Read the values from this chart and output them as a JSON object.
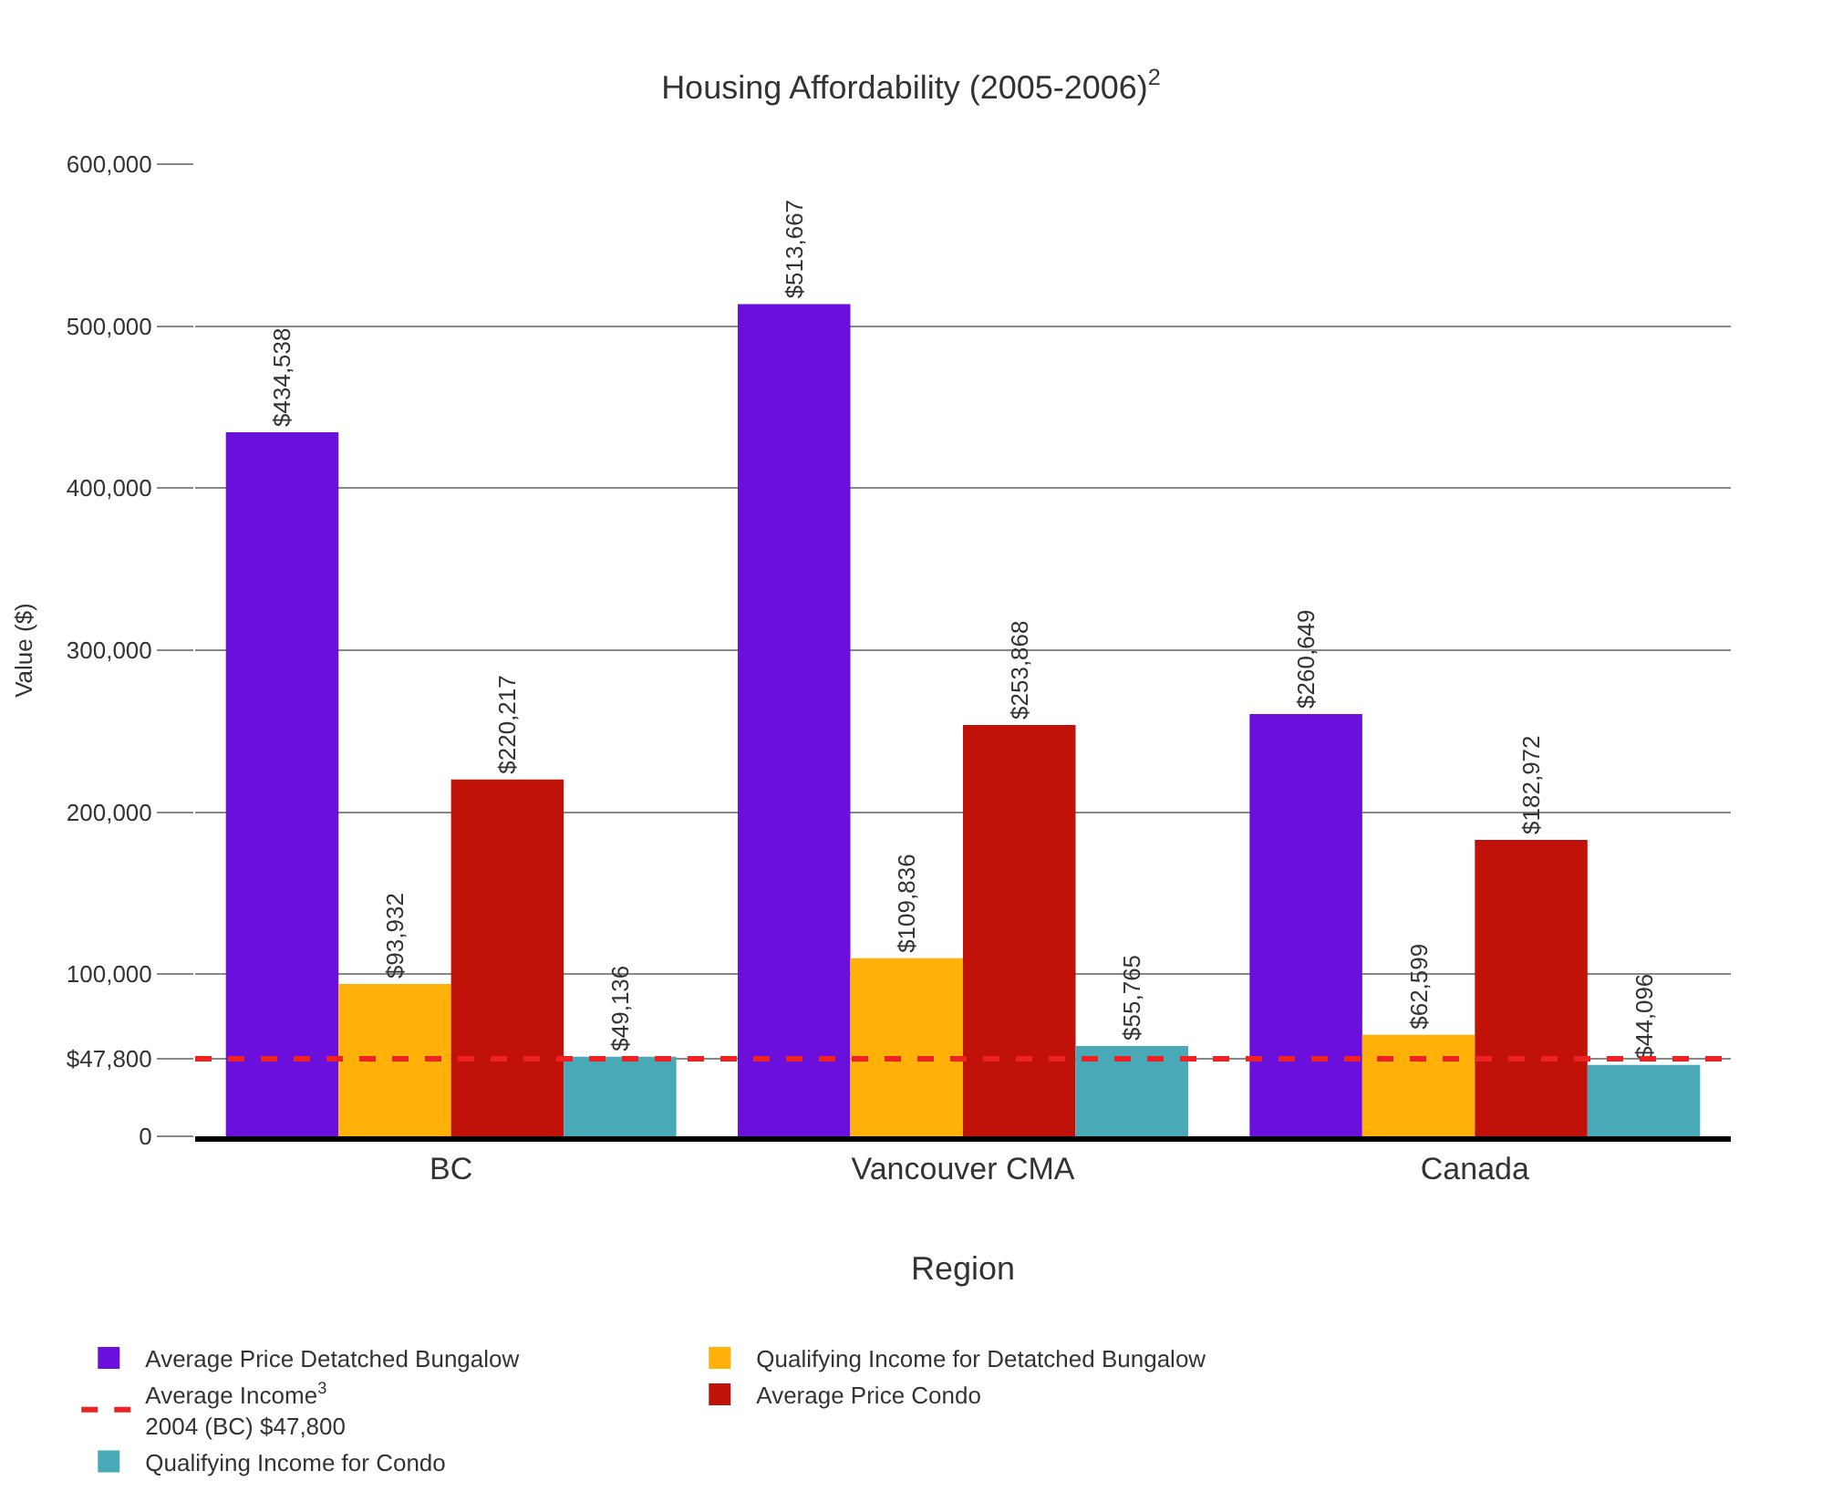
{
  "chart_data": {
    "type": "bar",
    "title": "Housing Affordability (2005-2006)$^{2}$",
    "xlabel": "Region",
    "ylabel": "Value ($)",
    "categories": [
      "BC",
      "Vancouver CMA",
      "Canada"
    ],
    "series": [
      {
        "name": "Average Price Detatched Bungalow",
        "color": "#6a0fdc",
        "values": [
          434538,
          513667,
          260649
        ],
        "value_labels": [
          "$434,538",
          "$513,667",
          "$260,649"
        ]
      },
      {
        "name": "Qualifying Income for Detatched Bungalow",
        "color": "#ffb10a",
        "values": [
          93932,
          109836,
          62599
        ],
        "value_labels": [
          "$93,932",
          "$109,836",
          "$62,599"
        ]
      },
      {
        "name": "Average Price Condo",
        "color": "#c01208",
        "values": [
          220217,
          253868,
          182972
        ],
        "value_labels": [
          "$220,217",
          "$253,868",
          "$182,972"
        ]
      },
      {
        "name": "Qualifying Income for Condo",
        "color": "#4aa9b7",
        "values": [
          49136,
          55765,
          44096
        ],
        "value_labels": [
          "$49,136",
          "$55,765",
          "$44,096"
        ]
      }
    ],
    "ref_lines": [
      {
        "axis": "y",
        "value": 47800,
        "label": "Average Income$^{3}$\n2004 (BC) $47,800",
        "color": "#ee2222",
        "line_style": "dashed"
      }
    ],
    "ylim": [
      0,
      600000
    ],
    "yticks": [
      0,
      {
        "value": 47800,
        "label": "$47,800"
      },
      {
        "value": 100000,
        "label": "100,000"
      },
      {
        "value": 200000,
        "label": "200,000"
      },
      {
        "value": 300000,
        "label": "300,000"
      },
      {
        "value": 400000,
        "label": "400,000"
      },
      {
        "value": 500000,
        "label": "500,000"
      },
      {
        "value": 600000,
        "label": "600,000"
      }
    ],
    "grid": "y",
    "legend": "bottom"
  }
}
